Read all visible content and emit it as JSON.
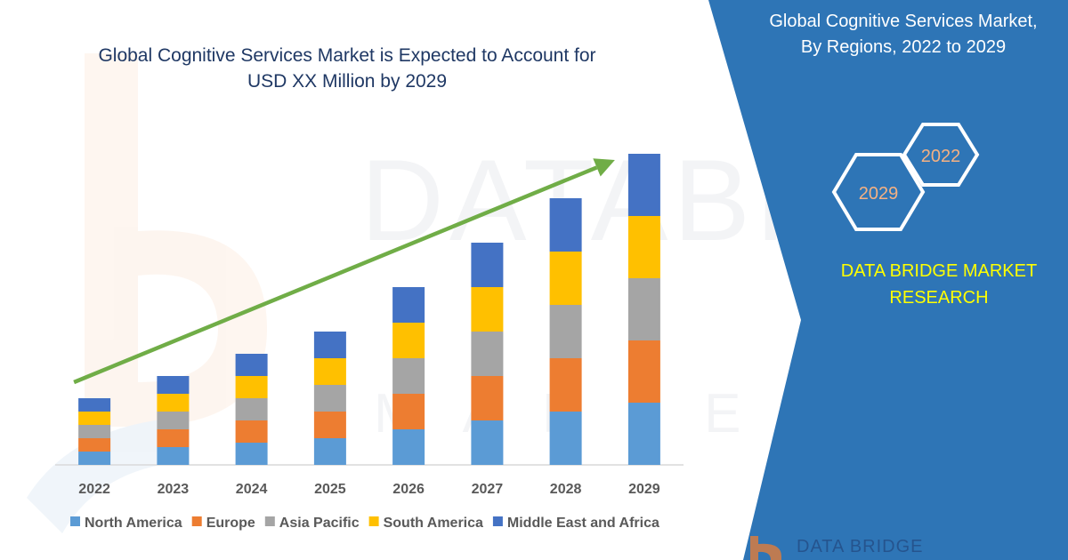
{
  "chart_title_line1": "Global Cognitive Services Market is Expected to Account for",
  "chart_title_line2": "USD XX Million by 2029",
  "panel": {
    "title_line1": "Global Cognitive Services Market,",
    "title_line2": "By Regions, 2022 to 2029",
    "badge_small": "2022",
    "badge_large": "2029",
    "brand_line1": "DATA BRIDGE MARKET",
    "brand_line2": "RESEARCH",
    "footer_brand": "DATA BRIDGE"
  },
  "watermark": {
    "line1": "DATABRIDGE",
    "line2": "MARKETRESEARCH"
  },
  "colors": {
    "panel_bg": "#2e75b6",
    "arrow": "#70ad47",
    "title_text": "#1f3864",
    "brand_text": "#ffff00"
  },
  "chart_data": {
    "type": "bar",
    "stacked": true,
    "categories": [
      "2022",
      "2023",
      "2024",
      "2025",
      "2026",
      "2027",
      "2028",
      "2029"
    ],
    "series": [
      {
        "name": "North America",
        "color": "#5b9bd5",
        "values": [
          15,
          20,
          25,
          30,
          40,
          50,
          60,
          70
        ]
      },
      {
        "name": "Europe",
        "color": "#ed7d31",
        "values": [
          15,
          20,
          25,
          30,
          40,
          50,
          60,
          70
        ]
      },
      {
        "name": "Asia Pacific",
        "color": "#a5a5a5",
        "values": [
          15,
          20,
          25,
          30,
          40,
          50,
          60,
          70
        ]
      },
      {
        "name": "South America",
        "color": "#ffc000",
        "values": [
          15,
          20,
          25,
          30,
          40,
          50,
          60,
          70
        ]
      },
      {
        "name": "Middle East and Africa",
        "color": "#4472c4",
        "values": [
          15,
          20,
          25,
          30,
          40,
          50,
          60,
          70
        ]
      }
    ],
    "ylim": [
      0,
      350
    ],
    "grid": false,
    "legend": "bottom",
    "trend_arrow": true
  }
}
